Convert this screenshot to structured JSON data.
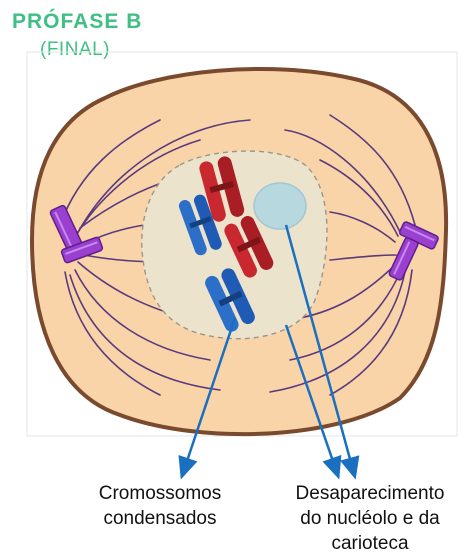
{
  "title": {
    "line1": "PRÓFASE B",
    "line2": "(FINAL)"
  },
  "labels": {
    "chromosomes": [
      "Cromossomos",
      "condensados"
    ],
    "nucleolus": [
      "Desaparecimento",
      "do nucléolo e da",
      "carioteca"
    ]
  },
  "colors": {
    "title": "#3fbf83",
    "cytoplasm": "#f9d4a9",
    "membrane": "#7a4a2e",
    "nucleus": "#ece3cd",
    "nucleolus": "#b8d8e0",
    "spindle": "#5a3a7c",
    "centriole": "#9b3fd1",
    "chromosome_red": "#c8282e",
    "chromosome_blue": "#1f5bb5",
    "arrow": "#1a6fbf"
  },
  "icons": {
    "centriole": "centriole-icon",
    "chromosome": "chromosome-icon",
    "nucleolus": "nucleolus-icon"
  }
}
